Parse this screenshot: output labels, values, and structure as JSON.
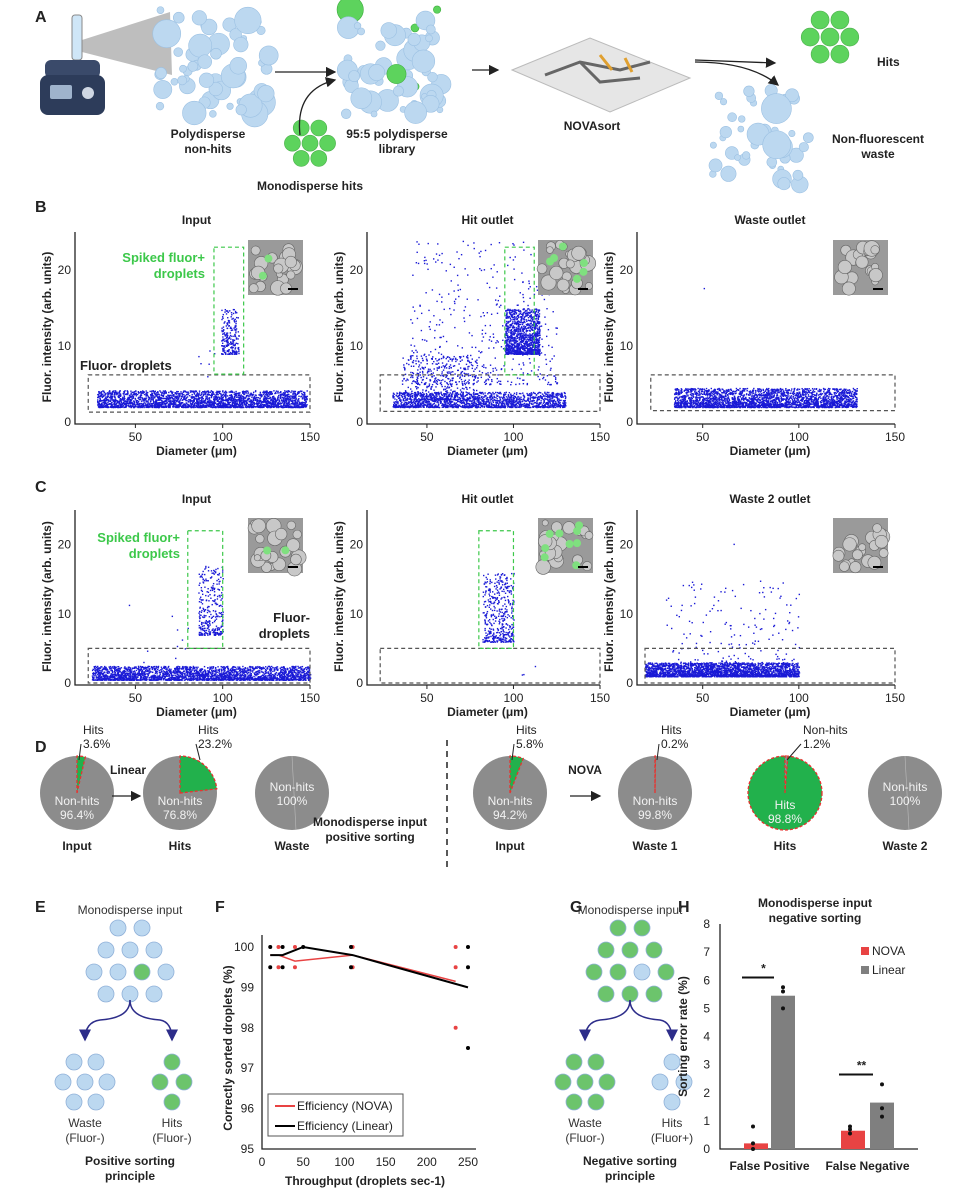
{
  "panels": [
    "A",
    "B",
    "C",
    "D",
    "E",
    "F",
    "G",
    "H"
  ],
  "colors": {
    "droplet_blue": "#bcd8f0",
    "hit_green": "#5dd35d",
    "scatter_blue": "#1a1ad6",
    "gate_green": "#3cc84a",
    "gate_gray": "#555555",
    "pie_gray": "#8c8c8c",
    "pie_green": "#22b14c",
    "nova_red": "#e84343",
    "linear_gray": "#7f7f7f"
  },
  "panel_a": {
    "polydisperse": [
      "Polydisperse",
      "non-hits"
    ],
    "monodisperse": "Monodisperse hits",
    "library": [
      "95:5 polydisperse",
      "library"
    ],
    "device": "NOVAsort",
    "hits": "Hits",
    "waste": [
      "Non-fluorescent",
      "waste"
    ]
  },
  "scatter_common": {
    "ylabel": "Fluor. intensity (arb. units)",
    "xlabel": "Diameter (μm)",
    "xticks": [
      50,
      100,
      150
    ],
    "yticks": [
      0,
      10,
      20
    ],
    "xlim": [
      20,
      150
    ],
    "ylim": [
      0,
      25
    ]
  },
  "chart_data": [
    {
      "type": "scatter",
      "panel": "B",
      "title": "Input",
      "gate_green_label": [
        "Spiked fluor+",
        "droplets"
      ],
      "gate_gray_label": "Fluor- droplets",
      "clusters": [
        {
          "diameter": [
            28,
            148
          ],
          "intensity": [
            2,
            4.2
          ],
          "n": 2600
        },
        {
          "diameter": [
            99,
            109
          ],
          "intensity": [
            9,
            15
          ],
          "n": 220
        },
        {
          "diameter": [
            84,
            98
          ],
          "intensity": [
            6,
            10
          ],
          "n": 6
        }
      ],
      "gate_green": {
        "diameter": [
          95,
          112
        ],
        "intensity": [
          6.3,
          23
        ]
      },
      "gate_gray": {
        "diameter": [
          23,
          150
        ],
        "intensity": [
          1.3,
          6.2
        ]
      }
    },
    {
      "type": "scatter",
      "panel": "B",
      "title": "Hit outlet",
      "clusters": [
        {
          "diameter": [
            30,
            130
          ],
          "intensity": [
            2,
            4
          ],
          "n": 1600
        },
        {
          "diameter": [
            35,
            80
          ],
          "intensity": [
            3,
            9
          ],
          "n": 400
        },
        {
          "diameter": [
            40,
            125
          ],
          "intensity": [
            5,
            24
          ],
          "n": 450
        },
        {
          "diameter": [
            95,
            115
          ],
          "intensity": [
            9,
            15
          ],
          "n": 1100
        }
      ],
      "gate_green": {
        "diameter": [
          95,
          112
        ],
        "intensity": [
          6.2,
          23
        ]
      },
      "gate_gray": {
        "diameter": [
          23,
          150
        ],
        "intensity": [
          1.4,
          6.2
        ]
      }
    },
    {
      "type": "scatter",
      "panel": "B",
      "title": "Waste outlet",
      "clusters": [
        {
          "diameter": [
            35,
            130
          ],
          "intensity": [
            2,
            4.5
          ],
          "n": 2600
        },
        {
          "diameter": [
            49,
            51
          ],
          "intensity": [
            17.5,
            17.7
          ],
          "n": 1
        }
      ],
      "gate_gray": {
        "diameter": [
          23,
          150
        ],
        "intensity": [
          1.5,
          6.2
        ]
      }
    },
    {
      "type": "scatter",
      "panel": "C",
      "title": "Input",
      "gate_green_label": [
        "Spiked fluor+",
        "droplets"
      ],
      "gate_gray_label": [
        "Fluor-",
        "droplets"
      ],
      "clusters": [
        {
          "diameter": [
            25,
            150
          ],
          "intensity": [
            0.5,
            2.5
          ],
          "n": 2400
        },
        {
          "diameter": [
            86,
            100
          ],
          "intensity": [
            7,
            17
          ],
          "n": 300
        },
        {
          "diameter": [
            40,
            80
          ],
          "intensity": [
            3,
            13
          ],
          "n": 10
        }
      ],
      "gate_green": {
        "diameter": [
          80,
          100
        ],
        "intensity": [
          5,
          22
        ]
      },
      "gate_gray": {
        "diameter": [
          23,
          150
        ],
        "intensity": [
          0,
          5
        ]
      }
    },
    {
      "type": "scatter",
      "panel": "C",
      "title": "Hit outlet",
      "clusters": [
        {
          "diameter": [
            82,
            100
          ],
          "intensity": [
            6,
            16
          ],
          "n": 420
        },
        {
          "diameter": [
            100,
            115
          ],
          "intensity": [
            1,
            3
          ],
          "n": 3
        }
      ],
      "gate_green": {
        "diameter": [
          80,
          100
        ],
        "intensity": [
          5,
          22
        ]
      },
      "gate_gray": {
        "diameter": [
          23,
          150
        ],
        "intensity": [
          0,
          5
        ]
      }
    },
    {
      "type": "scatter",
      "panel": "C",
      "title": "Waste 2 outlet",
      "clusters": [
        {
          "diameter": [
            20,
            100
          ],
          "intensity": [
            1,
            3
          ],
          "n": 2400
        },
        {
          "diameter": [
            30,
            100
          ],
          "intensity": [
            3,
            15
          ],
          "n": 160
        },
        {
          "diameter": [
            64,
            66
          ],
          "intensity": [
            20,
            20.2
          ],
          "n": 1
        }
      ],
      "gate_gray": {
        "diameter": [
          20,
          150
        ],
        "intensity": [
          0,
          5
        ]
      }
    },
    {
      "type": "pie",
      "panel": "D",
      "group": "left",
      "arrow_label": "Linear",
      "pies": [
        {
          "caption": "Input",
          "hits_pct": 3.6,
          "hits_label": [
            "Hits",
            "3.6%"
          ],
          "main_label": [
            "Non-hits",
            "96.4%"
          ]
        },
        {
          "caption": "Hits",
          "hits_pct": 23.2,
          "hits_label": [
            "Hits",
            "23.2%"
          ],
          "main_label": [
            "Non-hits",
            "76.8%"
          ]
        },
        {
          "caption": "Waste",
          "hits_pct": 0,
          "main_label": [
            "Non-hits",
            "100%"
          ]
        }
      ]
    },
    {
      "type": "pie",
      "panel": "D",
      "group": "right",
      "arrow_label": "NOVA",
      "pies": [
        {
          "caption": "Input",
          "hits_pct": 5.8,
          "hits_label": [
            "Hits",
            "5.8%"
          ],
          "main_label": [
            "Non-hits",
            "94.2%"
          ]
        },
        {
          "caption": "Waste 1",
          "hits_pct": 0.2,
          "hits_label": [
            "Hits",
            "0.2%"
          ],
          "main_label": [
            "Non-hits",
            "99.8%"
          ]
        },
        {
          "caption": "Hits",
          "hits_pct": 98.8,
          "hits_label": [
            "Non-hits",
            "1.2%"
          ],
          "main_label": [
            "Hits",
            "98.8%"
          ]
        },
        {
          "caption": "Waste 2",
          "hits_pct": 0,
          "main_label": [
            "Non-hits",
            "100%"
          ]
        }
      ]
    },
    {
      "type": "line",
      "panel": "F",
      "title": [
        "Monodisperse input",
        "positive sorting"
      ],
      "xlabel": "Throughput (droplets sec-1)",
      "ylabel": "Correctly sorted droplets (%)",
      "xlim": [
        0,
        250
      ],
      "ylim": [
        95,
        100
      ],
      "xticks": [
        0,
        50,
        100,
        150,
        200,
        250
      ],
      "yticks": [
        95,
        96,
        97,
        98,
        99,
        100
      ],
      "legend": "bottom-left",
      "series": [
        {
          "name": "Efficiency (NOVA)",
          "color": "#e84343",
          "line": [
            [
              10,
              99.8
            ],
            [
              20,
              99.8
            ],
            [
              40,
              99.65
            ],
            [
              110,
              99.8
            ],
            [
              235,
              99.15
            ]
          ],
          "points": [
            [
              20,
              100
            ],
            [
              20,
              99.5
            ],
            [
              40,
              100
            ],
            [
              40,
              99.5
            ],
            [
              110,
              100
            ],
            [
              110,
              99.5
            ],
            [
              235,
              100
            ],
            [
              235,
              99.5
            ],
            [
              235,
              98
            ]
          ]
        },
        {
          "name": "Efficiency (Linear)",
          "color": "#000000",
          "line": [
            [
              10,
              99.8
            ],
            [
              25,
              99.8
            ],
            [
              50,
              100
            ],
            [
              110,
              99.8
            ],
            [
              250,
              99
            ]
          ],
          "points": [
            [
              10,
              100
            ],
            [
              10,
              99.5
            ],
            [
              25,
              100
            ],
            [
              25,
              99.5
            ],
            [
              50,
              100
            ],
            [
              108,
              100
            ],
            [
              108,
              99.5
            ],
            [
              250,
              100
            ],
            [
              250,
              99.5
            ],
            [
              250,
              97.5
            ]
          ]
        }
      ]
    },
    {
      "type": "bar",
      "panel": "H",
      "title": [
        "Monodisperse input",
        "negative sorting"
      ],
      "ylabel": "Sorting error rate (%)",
      "ylim": [
        0,
        8
      ],
      "yticks": [
        0,
        1,
        2,
        3,
        4,
        5,
        6,
        7,
        8
      ],
      "legend": "top-right",
      "categories": [
        "False Positive",
        "False Negative"
      ],
      "series": [
        {
          "name": "NOVA",
          "color": "#e84343",
          "values": [
            0.2,
            0.65
          ],
          "points": [
            [
              0.8,
              0.2,
              0.0
            ],
            [
              0.8,
              0.7,
              0.55
            ]
          ]
        },
        {
          "name": "Linear",
          "color": "#7f7f7f",
          "values": [
            5.45,
            1.65
          ],
          "points": [
            [
              5.75,
              5.6,
              5.0
            ],
            [
              2.3,
              1.45,
              1.15
            ]
          ]
        }
      ],
      "significance": [
        "*",
        "**"
      ]
    }
  ],
  "panel_e": {
    "title": "Monodisperse input",
    "left": [
      "Waste",
      "(Fluor-)"
    ],
    "right": [
      "Hits",
      "(Fluor-)"
    ],
    "principle": [
      "Positive sorting",
      "principle"
    ]
  },
  "panel_g": {
    "title": "Monodisperse input",
    "left": [
      "Waste",
      "(Fluor-)"
    ],
    "right": [
      "Hits",
      "(Fluor+)"
    ],
    "principle": [
      "Negative sorting",
      "principle"
    ]
  }
}
